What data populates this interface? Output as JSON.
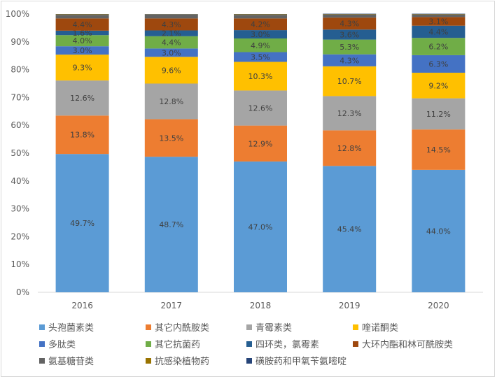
{
  "chart_data": {
    "type": "bar",
    "stacked": "percent",
    "categories": [
      "2016",
      "2017",
      "2018",
      "2019",
      "2020"
    ],
    "y_ticks": [
      "0%",
      "10%",
      "20%",
      "30%",
      "40%",
      "50%",
      "60%",
      "70%",
      "80%",
      "90%",
      "100%"
    ],
    "ylim": [
      0,
      100
    ],
    "grid": false,
    "legend_position": "bottom",
    "series": [
      {
        "name": "头孢菌素类",
        "color": "#5b9bd5",
        "values": [
          49.7,
          48.7,
          47.0,
          45.4,
          44.0
        ],
        "labels": [
          "49.7%",
          "48.7%",
          "47.0%",
          "45.4%",
          "44.0%"
        ]
      },
      {
        "name": "其它内酰胺类",
        "color": "#ed7d31",
        "values": [
          13.8,
          13.5,
          12.9,
          12.8,
          14.5
        ],
        "labels": [
          "13.8%",
          "13.5%",
          "12.9%",
          "12.8%",
          "14.5%"
        ]
      },
      {
        "name": "青霉素类",
        "color": "#a5a5a5",
        "values": [
          12.6,
          12.8,
          12.6,
          12.3,
          11.2
        ],
        "labels": [
          "12.6%",
          "12.8%",
          "12.6%",
          "12.3%",
          "11.2%"
        ]
      },
      {
        "name": "喹诺酮类",
        "color": "#ffc000",
        "values": [
          9.3,
          9.6,
          10.3,
          10.7,
          9.2
        ],
        "labels": [
          "9.3%",
          "9.6%",
          "10.3%",
          "10.7%",
          "9.2%"
        ]
      },
      {
        "name": "多肽类",
        "color": "#4472c4",
        "values": [
          3.0,
          3.0,
          3.5,
          4.3,
          6.3
        ],
        "labels": [
          "3.0%",
          "3.0%",
          "3.5%",
          "4.3%",
          "6.3%"
        ]
      },
      {
        "name": "其它抗菌药",
        "color": "#70ad47",
        "values": [
          4.0,
          4.4,
          4.9,
          5.3,
          6.2
        ],
        "labels": [
          "4.0%",
          "4.4%",
          "4.9%",
          "5.3%",
          "6.2%"
        ]
      },
      {
        "name": "四环类，氯霉素",
        "color": "#255e91",
        "values": [
          1.6,
          2.1,
          3.0,
          3.6,
          4.4
        ],
        "labels": [
          "1.6%",
          "2.1%",
          "3.0%",
          "3.6%",
          "4.4%"
        ]
      },
      {
        "name": "大环内酯和林可酰胺类",
        "color": "#9e480e",
        "values": [
          4.4,
          4.3,
          4.2,
          4.3,
          3.1
        ],
        "labels": [
          "4.4%",
          "4.3%",
          "4.2%",
          "4.3%",
          "3.1%"
        ]
      },
      {
        "name": "氨基糖苷类",
        "color": "#636363",
        "values": [
          1.3,
          1.4,
          1.3,
          1.2,
          1.0
        ],
        "labels": [
          "",
          "",
          "",
          "",
          ""
        ]
      },
      {
        "name": "抗感染植物药",
        "color": "#997300",
        "values": [
          0.2,
          0.1,
          0.2,
          0.1,
          0.1
        ],
        "labels": [
          "",
          "",
          "",
          "",
          ""
        ]
      },
      {
        "name": "磺胺药和甲氧苄氨嘧啶",
        "color": "#264478",
        "values": [
          0.1,
          0.1,
          0.1,
          0.1,
          0.1
        ],
        "labels": [
          "",
          "",
          "",
          "",
          ""
        ]
      }
    ]
  }
}
